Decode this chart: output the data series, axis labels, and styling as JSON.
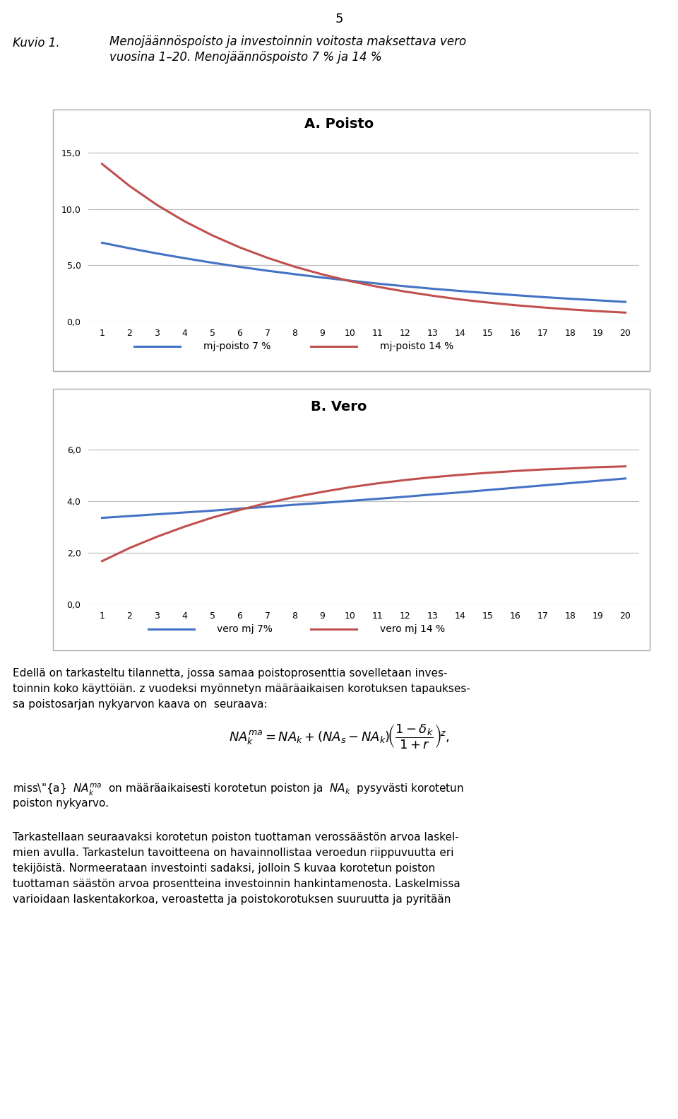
{
  "years": [
    1,
    2,
    3,
    4,
    5,
    6,
    7,
    8,
    9,
    10,
    11,
    12,
    13,
    14,
    15,
    16,
    17,
    18,
    19,
    20
  ],
  "poisto_7": [
    7.0,
    6.51,
    6.05,
    5.63,
    5.23,
    4.86,
    4.52,
    4.21,
    3.91,
    3.64,
    3.38,
    3.14,
    2.92,
    2.72,
    2.53,
    2.35,
    2.18,
    2.03,
    1.89,
    1.75
  ],
  "poisto_14": [
    14.0,
    12.04,
    10.35,
    8.9,
    7.66,
    6.59,
    5.67,
    4.87,
    4.19,
    3.6,
    3.1,
    2.67,
    2.3,
    1.97,
    1.7,
    1.46,
    1.26,
    1.08,
    0.93,
    0.8
  ],
  "vero_7": [
    3.36,
    3.43,
    3.5,
    3.57,
    3.64,
    3.72,
    3.79,
    3.87,
    3.94,
    4.02,
    4.1,
    4.18,
    4.27,
    4.35,
    4.44,
    4.53,
    4.62,
    4.71,
    4.8,
    4.89
  ],
  "vero_14": [
    1.68,
    2.19,
    2.63,
    3.02,
    3.37,
    3.67,
    3.94,
    4.17,
    4.37,
    4.55,
    4.7,
    4.83,
    4.94,
    5.03,
    5.11,
    5.18,
    5.24,
    5.28,
    5.33,
    5.36
  ],
  "color_7": "#4472C4",
  "color_14": "#C0504D",
  "title_A": "A. Poisto",
  "title_B": "B. Vero",
  "legend_7_poisto": "mj-poisto 7 %",
  "legend_14_poisto": "mj-poisto 14 %",
  "legend_7_vero": "vero mj 7%",
  "legend_14_vero": "vero mj 14 %",
  "ylim_A": [
    0,
    16
  ],
  "yticks_A": [
    0.0,
    5.0,
    10.0,
    15.0
  ],
  "ylim_B": [
    0,
    7
  ],
  "yticks_B": [
    0.0,
    2.0,
    4.0,
    6.0
  ],
  "kuvio_label": "Kuvio 1.",
  "kuvio_title_line1": "Menojäännöspoisto ja investoinnin voitosta maksettava vero",
  "kuvio_title_line2": "vuosina 1–20. Menojäännöspoisto 7 % ja 14 %",
  "page_number": "5",
  "body_text1": "Edellä on tarkasteltu tilannetta, jossa samaa poistoprosenttia sovelletaan inves-",
  "body_text2": "toinnin koko käyttöiän. z vuodeksi myönnetyn määräaikaisen korotuksen tapaukses-",
  "body_text3": "sa poistosarjan nykyarvon kaava on  seuraava:",
  "body_text_tark1": "Tarkastellaan seuraavaksi korotetun poiston tuottaman verossäästön arvoa laskel-",
  "body_text_tark2": "mien avulla. Tarkastelun tavoitteena on havainnollistaa veroedun riippuvuutta eri",
  "body_text_tark3": "tekijöistä. Normeerataan investointi sadaksi, jolloin S kuvaa korotetun poiston",
  "body_text_tark4": "tuottaman säästön arvoa prosentteina investoinnin hankintamenosta. Laskelmissa",
  "body_text_tark5": "varioidaan laskentakorkoa, veroastetta ja poistokorotuksen suuruutta ja pyritään"
}
